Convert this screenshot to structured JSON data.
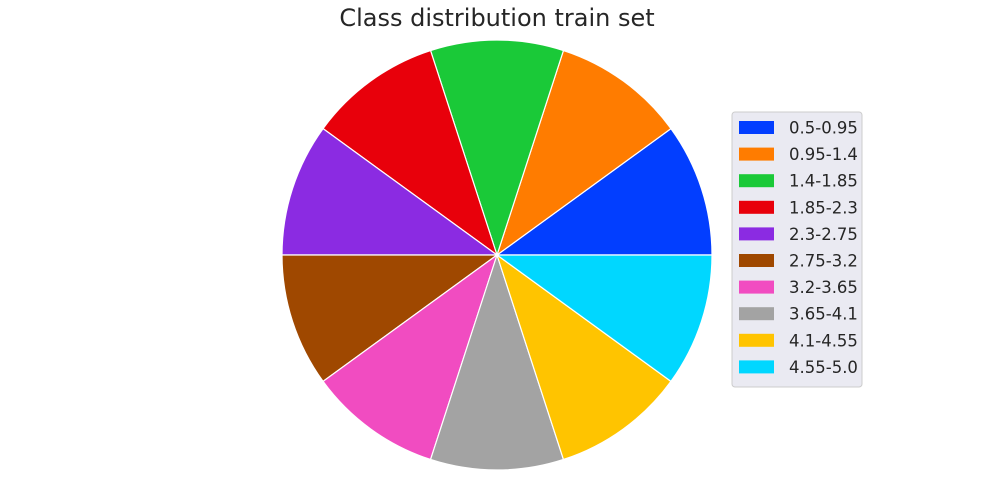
{
  "chart_data": {
    "type": "pie",
    "title": "Class distribution train set",
    "categories": [
      "0.5-0.95",
      "0.95-1.4",
      "1.4-1.85",
      "1.85-2.3",
      "2.3-2.75",
      "2.75-3.2",
      "3.2-3.65",
      "3.65-4.1",
      "4.1-4.55",
      "4.55-5.0"
    ],
    "values": [
      10,
      10,
      10,
      10,
      10,
      10,
      10,
      10,
      10,
      10
    ],
    "colors": [
      "#023eff",
      "#ff7c00",
      "#1ac938",
      "#e8000b",
      "#8b2be2",
      "#9f4800",
      "#f14cc1",
      "#a3a3a3",
      "#ffc400",
      "#00d7ff"
    ],
    "start_angle": 0,
    "direction": "counterclockwise",
    "legend_placement": "right"
  }
}
